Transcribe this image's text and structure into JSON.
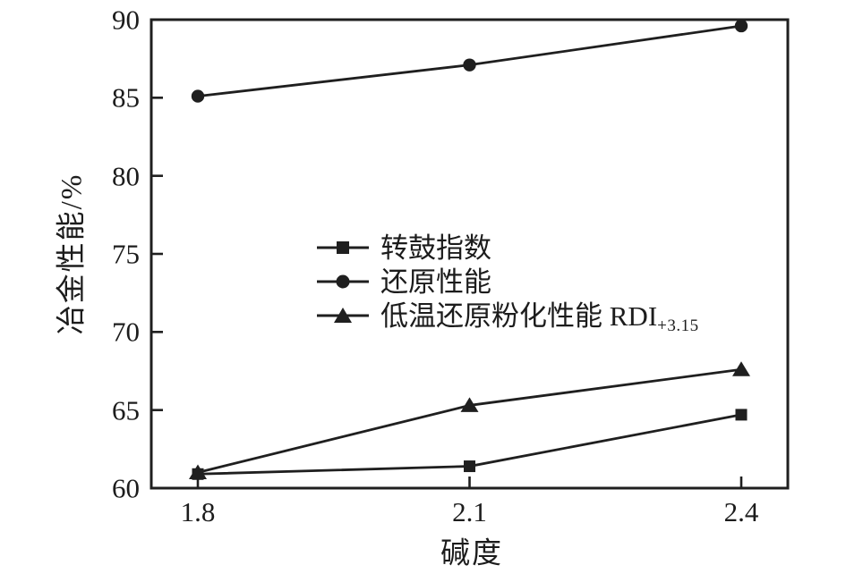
{
  "chart_data": {
    "type": "line",
    "title": "",
    "xlabel": "碱度",
    "ylabel": "冶金性能/%",
    "x": [
      1.8,
      2.1,
      2.4
    ],
    "xtick_labels": [
      "1.8",
      "2.1",
      "2.4"
    ],
    "yticks": [
      60,
      65,
      70,
      75,
      80,
      85,
      90
    ],
    "ylim": [
      60,
      90
    ],
    "grid": false,
    "legend_position": "inside-center",
    "line_color": "#1f1f1f",
    "text_color": "#1c1c1c",
    "background": "#ffffff",
    "series": [
      {
        "name": "转鼓指数",
        "name_sub": "",
        "marker": "square",
        "values": [
          60.9,
          61.4,
          64.7
        ]
      },
      {
        "name": "还原性能",
        "name_sub": "",
        "marker": "circle",
        "values": [
          85.1,
          87.1,
          89.6
        ]
      },
      {
        "name": "低温还原粉化性能 RDI",
        "name_sub": "+3.15",
        "marker": "triangle",
        "values": [
          61.0,
          65.3,
          67.6
        ]
      }
    ]
  }
}
